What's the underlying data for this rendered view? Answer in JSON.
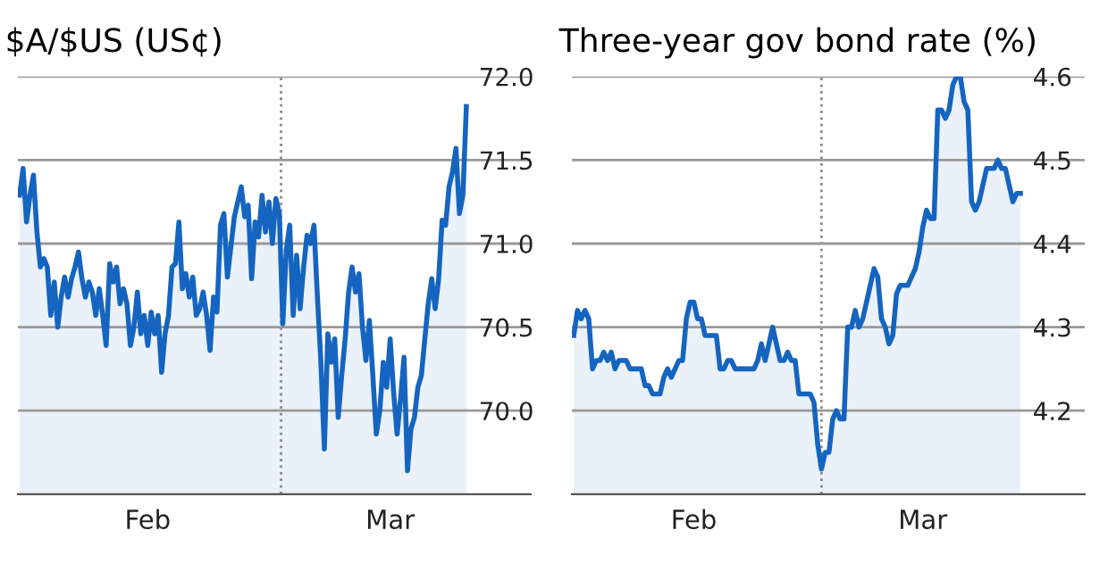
{
  "chart_data": [
    {
      "type": "area",
      "title": "$A/$US (US¢)",
      "categories": [
        null,
        null,
        null,
        null,
        null,
        null,
        null,
        null,
        null,
        null,
        null,
        null,
        null,
        null,
        null,
        null,
        null,
        null,
        null,
        null,
        null,
        null,
        null,
        null,
        null,
        null,
        null,
        null,
        null,
        null,
        null,
        null,
        null,
        null,
        null,
        null,
        null,
        "Feb",
        null,
        null,
        null,
        null,
        null,
        null,
        null,
        null,
        null,
        null,
        null,
        null,
        null,
        null,
        null,
        null,
        null,
        null,
        null,
        null,
        null,
        null,
        null,
        null,
        null,
        null,
        null,
        null,
        null,
        null,
        null,
        null,
        null,
        null,
        null,
        null,
        null,
        null,
        null,
        null,
        null,
        null,
        null,
        null,
        null,
        null,
        null,
        null,
        null,
        null,
        null,
        null,
        null,
        null,
        null,
        null,
        null,
        null,
        null,
        null,
        null,
        null,
        null,
        null,
        null,
        null,
        null,
        null,
        null,
        "Mar",
        null,
        null,
        null,
        null,
        null,
        null,
        null,
        null,
        null,
        null,
        null,
        null,
        null,
        null,
        null,
        null,
        null,
        null,
        null,
        null,
        null,
        null
      ],
      "series": [
        {
          "color": "#1565c0",
          "values": [
            71.29,
            71.45,
            71.13,
            71.29,
            71.41,
            71.07,
            70.86,
            70.91,
            70.86,
            70.57,
            70.77,
            70.5,
            70.68,
            70.8,
            70.68,
            70.79,
            70.86,
            70.95,
            70.79,
            70.68,
            70.77,
            70.71,
            70.57,
            70.73,
            70.57,
            70.39,
            70.88,
            70.77,
            70.86,
            70.64,
            70.73,
            70.64,
            70.39,
            70.5,
            70.71,
            70.46,
            70.57,
            70.39,
            70.59,
            70.46,
            70.57,
            70.23,
            70.46,
            70.57,
            70.86,
            70.88,
            71.13,
            70.73,
            70.82,
            70.68,
            70.8,
            70.57,
            70.61,
            70.71,
            70.57,
            70.36,
            70.68,
            70.59,
            71.11,
            71.18,
            70.8,
            70.98,
            71.16,
            71.25,
            71.34,
            71.16,
            71.23,
            70.79,
            71.13,
            71.04,
            71.29,
            71.07,
            71.25,
            71.0,
            71.27,
            71.18,
            70.52,
            70.96,
            71.11,
            70.57,
            70.93,
            70.61,
            70.86,
            71.05,
            71.0,
            71.11,
            70.68,
            70.29,
            69.77,
            70.46,
            70.29,
            70.43,
            69.96,
            70.21,
            70.43,
            70.71,
            70.86,
            70.71,
            70.82,
            70.5,
            70.3,
            70.54,
            70.21,
            69.86,
            70.0,
            70.29,
            70.14,
            70.43,
            70.11,
            69.86,
            70.07,
            70.32,
            69.64,
            69.89,
            69.96,
            70.14,
            70.21,
            70.43,
            70.64,
            70.79,
            70.61,
            70.79,
            71.14,
            71.11,
            71.34,
            71.43,
            71.57,
            71.18,
            71.29,
            71.82
          ]
        }
      ],
      "ylim": [
        69.5,
        72.0
      ],
      "yticks": [
        {
          "value": 70.0,
          "label": "70.0"
        },
        {
          "value": 70.5,
          "label": "70.5"
        },
        {
          "value": 71.0,
          "label": "71.0"
        },
        {
          "value": 71.5,
          "label": "71.5"
        },
        {
          "value": 72.0,
          "label": "72.0"
        }
      ],
      "grid": "y"
    },
    {
      "type": "area",
      "title": "Three-year gov bond rate (%)",
      "categories": [
        null,
        null,
        null,
        null,
        null,
        null,
        null,
        null,
        null,
        null,
        null,
        null,
        null,
        null,
        null,
        null,
        null,
        null,
        null,
        null,
        null,
        null,
        null,
        null,
        null,
        null,
        null,
        null,
        null,
        null,
        null,
        null,
        "Feb",
        null,
        null,
        null,
        null,
        null,
        null,
        null,
        null,
        null,
        null,
        null,
        null,
        null,
        null,
        null,
        null,
        null,
        null,
        null,
        null,
        null,
        null,
        null,
        null,
        null,
        null,
        null,
        null,
        null,
        null,
        null,
        null,
        null,
        null,
        null,
        null,
        null,
        null,
        null,
        null,
        null,
        null,
        null,
        null,
        null,
        null,
        null,
        null,
        null,
        null,
        null,
        null,
        null,
        null,
        null,
        null,
        null,
        null,
        null,
        null,
        "Mar",
        null,
        null,
        null,
        null,
        null,
        null,
        null,
        null,
        null,
        null,
        null,
        null,
        null,
        null,
        null,
        null,
        null,
        null,
        null,
        null,
        null,
        null,
        null,
        null,
        null,
        null
      ],
      "series": [
        {
          "color": "#1565c0",
          "values": [
            4.29,
            4.32,
            4.31,
            4.32,
            4.31,
            4.25,
            4.26,
            4.26,
            4.27,
            4.26,
            4.27,
            4.25,
            4.26,
            4.26,
            4.26,
            4.25,
            4.25,
            4.25,
            4.25,
            4.23,
            4.23,
            4.22,
            4.22,
            4.22,
            4.24,
            4.25,
            4.24,
            4.25,
            4.26,
            4.26,
            4.31,
            4.33,
            4.33,
            4.31,
            4.31,
            4.29,
            4.29,
            4.29,
            4.29,
            4.25,
            4.25,
            4.26,
            4.26,
            4.25,
            4.25,
            4.25,
            4.25,
            4.25,
            4.25,
            4.26,
            4.28,
            4.26,
            4.28,
            4.3,
            4.28,
            4.26,
            4.26,
            4.27,
            4.26,
            4.26,
            4.22,
            4.22,
            4.22,
            4.22,
            4.21,
            4.16,
            4.13,
            4.15,
            4.15,
            4.19,
            4.2,
            4.19,
            4.19,
            4.3,
            4.3,
            4.32,
            4.3,
            4.31,
            4.33,
            4.35,
            4.37,
            4.36,
            4.31,
            4.3,
            4.28,
            4.29,
            4.34,
            4.35,
            4.35,
            4.35,
            4.36,
            4.37,
            4.39,
            4.42,
            4.44,
            4.43,
            4.43,
            4.56,
            4.56,
            4.55,
            4.56,
            4.59,
            4.6,
            4.6,
            4.57,
            4.56,
            4.45,
            4.44,
            4.45,
            4.47,
            4.49,
            4.49,
            4.49,
            4.5,
            4.49,
            4.49,
            4.47,
            4.45,
            4.46,
            4.46
          ]
        }
      ],
      "ylim": [
        4.1,
        4.6
      ],
      "yticks": [
        {
          "value": 4.2,
          "label": "4.2"
        },
        {
          "value": 4.3,
          "label": "4.3"
        },
        {
          "value": 4.4,
          "label": "4.4"
        },
        {
          "value": 4.5,
          "label": "4.5"
        },
        {
          "value": 4.6,
          "label": "4.6"
        }
      ],
      "grid": "y"
    }
  ]
}
